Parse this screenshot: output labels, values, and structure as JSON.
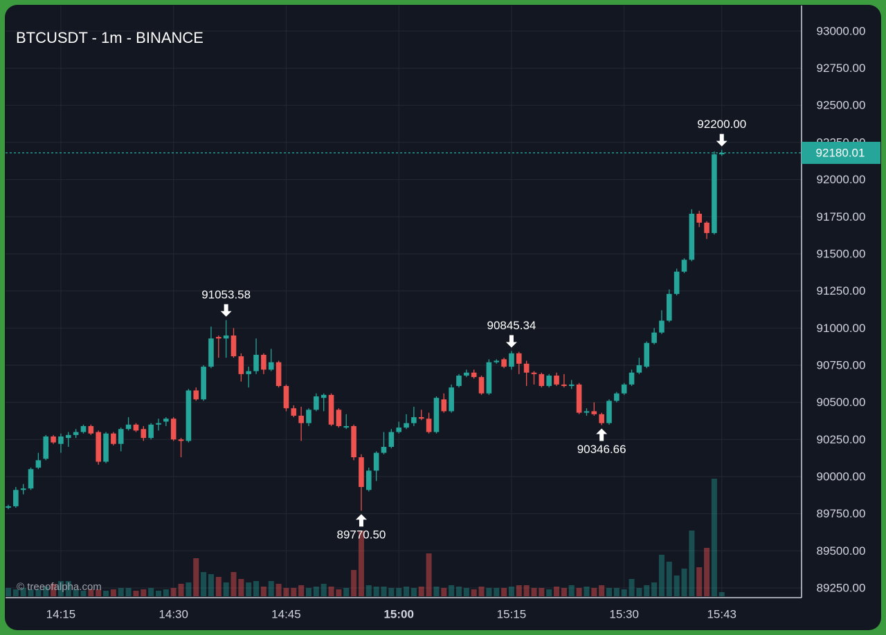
{
  "chart_data": {
    "type": "candlestick",
    "title": "BTCUSDT - 1m - BINANCE",
    "watermark": "© treeofalpha.com",
    "up_color": "#26a69a",
    "down_color": "#ef5350",
    "grid": true,
    "x": [
      "14:08",
      "14:09",
      "14:10",
      "14:11",
      "14:12",
      "14:13",
      "14:14",
      "14:15",
      "14:16",
      "14:17",
      "14:18",
      "14:19",
      "14:20",
      "14:21",
      "14:22",
      "14:23",
      "14:24",
      "14:25",
      "14:26",
      "14:27",
      "14:28",
      "14:29",
      "14:30",
      "14:31",
      "14:32",
      "14:33",
      "14:34",
      "14:35",
      "14:36",
      "14:37",
      "14:38",
      "14:39",
      "14:40",
      "14:41",
      "14:42",
      "14:43",
      "14:44",
      "14:45",
      "14:46",
      "14:47",
      "14:48",
      "14:49",
      "14:50",
      "14:51",
      "14:52",
      "14:53",
      "14:54",
      "14:55",
      "14:56",
      "14:57",
      "14:58",
      "14:59",
      "15:00",
      "15:01",
      "15:02",
      "15:03",
      "15:04",
      "15:05",
      "15:06",
      "15:07",
      "15:08",
      "15:09",
      "15:10",
      "15:11",
      "15:12",
      "15:13",
      "15:14",
      "15:15",
      "15:16",
      "15:17",
      "15:18",
      "15:19",
      "15:20",
      "15:21",
      "15:22",
      "15:23",
      "15:24",
      "15:25",
      "15:26",
      "15:27",
      "15:28",
      "15:29",
      "15:30",
      "15:31",
      "15:32",
      "15:33",
      "15:34",
      "15:35",
      "15:36",
      "15:37",
      "15:38",
      "15:39",
      "15:40",
      "15:41",
      "15:42",
      "15:43"
    ],
    "open": [
      89790,
      89800,
      89910,
      89920,
      90060,
      90120,
      90270,
      90220,
      90260,
      90280,
      90300,
      90340,
      90300,
      90100,
      90290,
      90220,
      90320,
      90350,
      90320,
      90260,
      90350,
      90370,
      90390,
      90250,
      90240,
      90580,
      90520,
      90740,
      90940,
      90930,
      90950,
      90810,
      90690,
      90710,
      90820,
      90720,
      90770,
      90610,
      90460,
      90410,
      90360,
      90450,
      90530,
      90550,
      90450,
      90330,
      90340,
      90130,
      89910,
      90040,
      90160,
      90200,
      90300,
      90330,
      90360,
      90400,
      90390,
      90300,
      90520,
      90440,
      90610,
      90680,
      90700,
      90670,
      90560,
      90770,
      90790,
      90740,
      90830,
      90760,
      90700,
      90690,
      90610,
      90680,
      90620,
      90610,
      90620,
      90430,
      90440,
      90420,
      90360,
      90510,
      90560,
      90620,
      90700,
      90740,
      90900,
      90970,
      91050,
      91230,
      91380,
      91460,
      91770,
      91710,
      91640,
      92170
    ],
    "high": [
      89810,
      89930,
      89950,
      90060,
      90160,
      90280,
      90280,
      90290,
      90300,
      90320,
      90350,
      90350,
      90310,
      90300,
      90300,
      90330,
      90400,
      90360,
      90340,
      90360,
      90390,
      90400,
      90400,
      90260,
      90590,
      90600,
      90750,
      91010,
      90950,
      91053.58,
      91000,
      90830,
      90740,
      90930,
      90830,
      90860,
      90780,
      90620,
      90480,
      90470,
      90460,
      90560,
      90560,
      90560,
      90460,
      90420,
      90350,
      90150,
      90060,
      90170,
      90300,
      90320,
      90370,
      90420,
      90470,
      90450,
      90430,
      90540,
      90560,
      90620,
      90690,
      90720,
      90720,
      90680,
      90790,
      90790,
      90800,
      90845.34,
      90840,
      90780,
      90710,
      90700,
      90690,
      90700,
      90690,
      90650,
      90630,
      90460,
      90500,
      90430,
      90520,
      90570,
      90630,
      90720,
      90800,
      90910,
      91000,
      91120,
      91260,
      91400,
      91470,
      91800,
      91790,
      91720,
      92190,
      92200
    ],
    "low": [
      89780,
      89790,
      89880,
      89910,
      90050,
      90110,
      90220,
      90160,
      90200,
      90260,
      90290,
      90280,
      90080,
      90090,
      90210,
      90170,
      90310,
      90300,
      90240,
      90250,
      90310,
      90340,
      90240,
      90130,
      90230,
      90510,
      90510,
      90730,
      90800,
      90800,
      90800,
      90640,
      90600,
      90690,
      90690,
      90710,
      90600,
      90440,
      90400,
      90240,
      90340,
      90440,
      90440,
      90340,
      90330,
      90320,
      90110,
      89770.5,
      89900,
      89970,
      90150,
      90190,
      90290,
      90320,
      90340,
      90380,
      90290,
      90290,
      90430,
      90430,
      90600,
      90670,
      90660,
      90550,
      90550,
      90760,
      90730,
      90720,
      90690,
      90610,
      90620,
      90600,
      90600,
      90610,
      90600,
      90590,
      90420,
      90410,
      90410,
      90346.66,
      90350,
      90500,
      90550,
      90610,
      90690,
      90730,
      90890,
      90960,
      91040,
      91220,
      91370,
      91450,
      91680,
      91600,
      91630,
      92160
    ],
    "close": [
      89800,
      89910,
      89920,
      90050,
      90110,
      90270,
      90230,
      90270,
      90280,
      90300,
      90340,
      90290,
      90100,
      90290,
      90220,
      90320,
      90350,
      90310,
      90260,
      90350,
      90360,
      90390,
      90250,
      90240,
      90580,
      90520,
      90740,
      90930,
      90930,
      90950,
      90810,
      90690,
      90710,
      90820,
      90720,
      90770,
      90610,
      90460,
      90410,
      90360,
      90450,
      90540,
      90550,
      90350,
      90340,
      90340,
      90130,
      89930,
      90040,
      90160,
      90200,
      90300,
      90330,
      90360,
      90400,
      90390,
      90300,
      90530,
      90440,
      90600,
      90680,
      90700,
      90670,
      90560,
      90770,
      90780,
      90740,
      90830,
      90760,
      90700,
      90690,
      90610,
      90680,
      90620,
      90610,
      90620,
      90430,
      90440,
      90420,
      90360,
      90510,
      90560,
      90620,
      90700,
      90750,
      90900,
      90970,
      91050,
      91230,
      91380,
      91460,
      91770,
      91710,
      91640,
      92170,
      92180.01
    ],
    "volume": [
      12,
      10,
      12,
      10,
      10,
      14,
      18,
      22,
      22,
      10,
      8,
      10,
      10,
      8,
      10,
      12,
      12,
      8,
      10,
      12,
      8,
      10,
      12,
      18,
      20,
      55,
      35,
      32,
      28,
      20,
      35,
      25,
      20,
      22,
      14,
      22,
      18,
      12,
      12,
      16,
      12,
      14,
      18,
      14,
      10,
      12,
      38,
      95,
      16,
      14,
      14,
      12,
      12,
      14,
      12,
      14,
      62,
      14,
      12,
      16,
      14,
      12,
      10,
      14,
      12,
      12,
      12,
      14,
      16,
      16,
      12,
      12,
      10,
      14,
      12,
      16,
      12,
      14,
      12,
      16,
      12,
      12,
      10,
      25,
      12,
      16,
      20,
      60,
      50,
      30,
      40,
      95,
      42,
      70,
      170,
      6
    ],
    "ylim": [
      89194,
      93172
    ],
    "yticks": [
      {
        "value": 89250,
        "label": "89250.00"
      },
      {
        "value": 89500,
        "label": "89500.00"
      },
      {
        "value": 89750,
        "label": "89750.00"
      },
      {
        "value": 90000,
        "label": "90000.00"
      },
      {
        "value": 90250,
        "label": "90250.00"
      },
      {
        "value": 90500,
        "label": "90500.00"
      },
      {
        "value": 90750,
        "label": "90750.00"
      },
      {
        "value": 91000,
        "label": "91000.00"
      },
      {
        "value": 91250,
        "label": "91250.00"
      },
      {
        "value": 91500,
        "label": "91500.00"
      },
      {
        "value": 91750,
        "label": "91750.00"
      },
      {
        "value": 92000,
        "label": "92000.00"
      },
      {
        "value": 92250,
        "label": "92250.00"
      },
      {
        "value": 92500,
        "label": "92500.00"
      },
      {
        "value": 92750,
        "label": "92750.00"
      },
      {
        "value": 93000,
        "label": "93000.00"
      }
    ],
    "xticks": [
      "14:15",
      "14:30",
      "14:45",
      "15:00",
      "15:15",
      "15:30",
      "15:43"
    ],
    "xtick_bold": [
      false,
      false,
      false,
      true,
      false,
      false,
      false
    ],
    "markers": [
      {
        "x": "14:37",
        "value": 91053.58,
        "label": "91053.58",
        "position": "above"
      },
      {
        "x": "14:55",
        "value": 89770.5,
        "label": "89770.50",
        "position": "below"
      },
      {
        "x": "15:15",
        "value": 90845.34,
        "label": "90845.34",
        "position": "above"
      },
      {
        "x": "15:27",
        "value": 90346.66,
        "label": "90346.66",
        "position": "below"
      },
      {
        "x": "15:43",
        "value": 92200,
        "label": "92200.00",
        "position": "above"
      }
    ]
  }
}
